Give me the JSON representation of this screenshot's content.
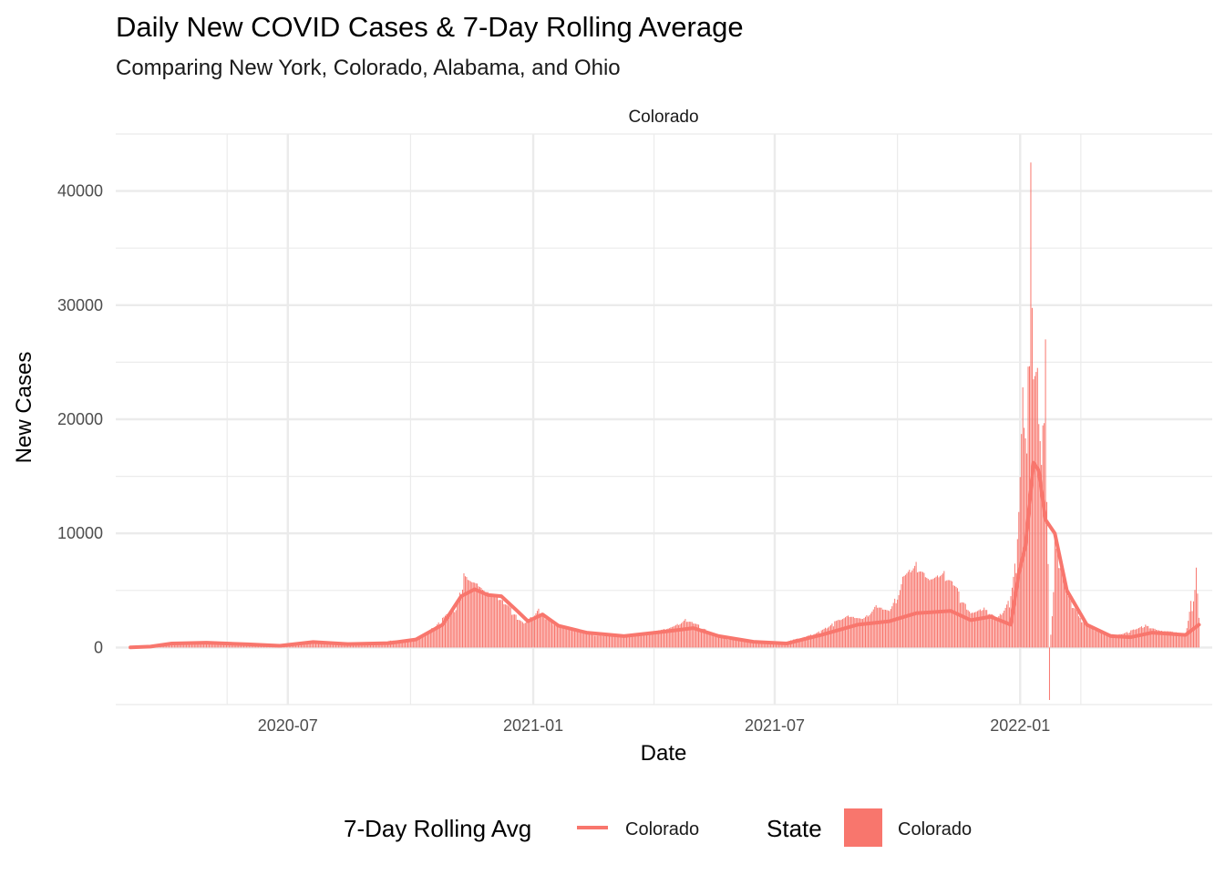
{
  "chart_data": {
    "type": "bar",
    "title": "Daily New COVID Cases & 7-Day Rolling Average",
    "subtitle": "Comparing New York, Colorado, Alabama, and Ohio",
    "facet": "Colorado",
    "xlabel": "Date",
    "ylabel": "New Cases",
    "x_ticks": [
      "2020-07",
      "2021-01",
      "2021-07",
      "2022-01"
    ],
    "y_ticks": [
      0,
      10000,
      20000,
      30000,
      40000
    ],
    "ylim": [
      -5000,
      45000
    ],
    "xlim": [
      "2020-02-23",
      "2022-05-25"
    ],
    "grid": true,
    "legend_position": "bottom",
    "colors": {
      "series": "#F8766D",
      "grid": "#EBEBEB"
    },
    "series": [
      {
        "name": "Colorado",
        "kind": "daily-bars",
        "values": [
          {
            "date": "2020-03-05",
            "y": 5
          },
          {
            "date": "2020-03-15",
            "y": 40
          },
          {
            "date": "2020-03-25",
            "y": 150
          },
          {
            "date": "2020-04-05",
            "y": 380
          },
          {
            "date": "2020-04-15",
            "y": 420
          },
          {
            "date": "2020-04-25",
            "y": 500
          },
          {
            "date": "2020-05-05",
            "y": 450
          },
          {
            "date": "2020-05-15",
            "y": 400
          },
          {
            "date": "2020-05-25",
            "y": 300
          },
          {
            "date": "2020-06-05",
            "y": 250
          },
          {
            "date": "2020-06-15",
            "y": 200
          },
          {
            "date": "2020-06-25",
            "y": 250
          },
          {
            "date": "2020-07-05",
            "y": 380
          },
          {
            "date": "2020-07-15",
            "y": 500
          },
          {
            "date": "2020-07-25",
            "y": 550
          },
          {
            "date": "2020-08-05",
            "y": 420
          },
          {
            "date": "2020-08-15",
            "y": 350
          },
          {
            "date": "2020-08-25",
            "y": 300
          },
          {
            "date": "2020-09-05",
            "y": 400
          },
          {
            "date": "2020-09-15",
            "y": 600
          },
          {
            "date": "2020-09-25",
            "y": 650
          },
          {
            "date": "2020-10-05",
            "y": 800
          },
          {
            "date": "2020-10-15",
            "y": 1500
          },
          {
            "date": "2020-10-25",
            "y": 2600
          },
          {
            "date": "2020-11-05",
            "y": 3800
          },
          {
            "date": "2020-11-10",
            "y": 6500
          },
          {
            "date": "2020-11-15",
            "y": 5800
          },
          {
            "date": "2020-11-20",
            "y": 5600
          },
          {
            "date": "2020-11-25",
            "y": 5000
          },
          {
            "date": "2020-12-05",
            "y": 4600
          },
          {
            "date": "2020-12-15",
            "y": 3500
          },
          {
            "date": "2020-12-25",
            "y": 2100
          },
          {
            "date": "2021-01-05",
            "y": 3400
          },
          {
            "date": "2021-01-15",
            "y": 2200
          },
          {
            "date": "2021-01-25",
            "y": 1800
          },
          {
            "date": "2021-02-05",
            "y": 1500
          },
          {
            "date": "2021-02-15",
            "y": 1100
          },
          {
            "date": "2021-02-25",
            "y": 1000
          },
          {
            "date": "2021-03-05",
            "y": 1000
          },
          {
            "date": "2021-03-15",
            "y": 1100
          },
          {
            "date": "2021-03-25",
            "y": 1200
          },
          {
            "date": "2021-04-05",
            "y": 1500
          },
          {
            "date": "2021-04-15",
            "y": 1800
          },
          {
            "date": "2021-04-25",
            "y": 2500
          },
          {
            "date": "2021-05-05",
            "y": 2000
          },
          {
            "date": "2021-05-15",
            "y": 1300
          },
          {
            "date": "2021-05-25",
            "y": 800
          },
          {
            "date": "2021-06-05",
            "y": 600
          },
          {
            "date": "2021-06-15",
            "y": 450
          },
          {
            "date": "2021-06-25",
            "y": 350
          },
          {
            "date": "2021-07-05",
            "y": 350
          },
          {
            "date": "2021-07-15",
            "y": 700
          },
          {
            "date": "2021-07-25",
            "y": 1000
          },
          {
            "date": "2021-08-05",
            "y": 1500
          },
          {
            "date": "2021-08-15",
            "y": 2300
          },
          {
            "date": "2021-08-25",
            "y": 2800
          },
          {
            "date": "2021-09-05",
            "y": 2500
          },
          {
            "date": "2021-09-15",
            "y": 3700
          },
          {
            "date": "2021-09-25",
            "y": 3200
          },
          {
            "date": "2021-10-05",
            "y": 6200
          },
          {
            "date": "2021-10-15",
            "y": 7500
          },
          {
            "date": "2021-10-25",
            "y": 5900
          },
          {
            "date": "2021-11-05",
            "y": 6700
          },
          {
            "date": "2021-11-15",
            "y": 5200
          },
          {
            "date": "2021-11-25",
            "y": 3000
          },
          {
            "date": "2021-12-05",
            "y": 3500
          },
          {
            "date": "2021-12-15",
            "y": 2600
          },
          {
            "date": "2021-12-25",
            "y": 4500
          },
          {
            "date": "2021-12-30",
            "y": 9500
          },
          {
            "date": "2022-01-03",
            "y": 22800
          },
          {
            "date": "2022-01-06",
            "y": 17000
          },
          {
            "date": "2022-01-09",
            "y": 42500
          },
          {
            "date": "2022-01-11",
            "y": 23500
          },
          {
            "date": "2022-01-14",
            "y": 24500
          },
          {
            "date": "2022-01-17",
            "y": 16000
          },
          {
            "date": "2022-01-20",
            "y": 27000
          },
          {
            "date": "2022-01-23",
            "y": -4600
          },
          {
            "date": "2022-01-27",
            "y": 9500
          },
          {
            "date": "2022-02-05",
            "y": 5500
          },
          {
            "date": "2022-02-15",
            "y": 2600
          },
          {
            "date": "2022-02-25",
            "y": 1600
          },
          {
            "date": "2022-03-05",
            "y": 1300
          },
          {
            "date": "2022-03-15",
            "y": 1100
          },
          {
            "date": "2022-03-25",
            "y": 1500
          },
          {
            "date": "2022-04-05",
            "y": 2000
          },
          {
            "date": "2022-04-15",
            "y": 1500
          },
          {
            "date": "2022-04-25",
            "y": 1400
          },
          {
            "date": "2022-05-05",
            "y": 1200
          },
          {
            "date": "2022-05-13",
            "y": 7000
          },
          {
            "date": "2022-05-15",
            "y": 2600
          }
        ]
      },
      {
        "name": "Colorado",
        "kind": "rolling-average-line",
        "values": [
          {
            "date": "2020-03-05",
            "y": 5
          },
          {
            "date": "2020-03-20",
            "y": 80
          },
          {
            "date": "2020-04-05",
            "y": 350
          },
          {
            "date": "2020-05-01",
            "y": 420
          },
          {
            "date": "2020-06-01",
            "y": 280
          },
          {
            "date": "2020-06-25",
            "y": 150
          },
          {
            "date": "2020-07-20",
            "y": 480
          },
          {
            "date": "2020-08-15",
            "y": 300
          },
          {
            "date": "2020-09-15",
            "y": 380
          },
          {
            "date": "2020-10-05",
            "y": 700
          },
          {
            "date": "2020-10-25",
            "y": 2000
          },
          {
            "date": "2020-11-08",
            "y": 4500
          },
          {
            "date": "2020-11-18",
            "y": 5100
          },
          {
            "date": "2020-11-28",
            "y": 4600
          },
          {
            "date": "2020-12-08",
            "y": 4500
          },
          {
            "date": "2020-12-20",
            "y": 3200
          },
          {
            "date": "2020-12-28",
            "y": 2300
          },
          {
            "date": "2021-01-08",
            "y": 2900
          },
          {
            "date": "2021-01-20",
            "y": 1900
          },
          {
            "date": "2021-02-10",
            "y": 1300
          },
          {
            "date": "2021-03-10",
            "y": 1000
          },
          {
            "date": "2021-04-10",
            "y": 1400
          },
          {
            "date": "2021-05-01",
            "y": 1700
          },
          {
            "date": "2021-05-20",
            "y": 1000
          },
          {
            "date": "2021-06-15",
            "y": 500
          },
          {
            "date": "2021-07-10",
            "y": 350
          },
          {
            "date": "2021-08-05",
            "y": 1100
          },
          {
            "date": "2021-09-01",
            "y": 2000
          },
          {
            "date": "2021-09-25",
            "y": 2300
          },
          {
            "date": "2021-10-15",
            "y": 3000
          },
          {
            "date": "2021-11-10",
            "y": 3200
          },
          {
            "date": "2021-11-25",
            "y": 2400
          },
          {
            "date": "2021-12-10",
            "y": 2700
          },
          {
            "date": "2021-12-25",
            "y": 2000
          },
          {
            "date": "2021-12-31",
            "y": 6500
          },
          {
            "date": "2022-01-05",
            "y": 8900
          },
          {
            "date": "2022-01-11",
            "y": 16200
          },
          {
            "date": "2022-01-15",
            "y": 15500
          },
          {
            "date": "2022-01-20",
            "y": 11200
          },
          {
            "date": "2022-01-27",
            "y": 10000
          },
          {
            "date": "2022-02-05",
            "y": 5000
          },
          {
            "date": "2022-02-20",
            "y": 2000
          },
          {
            "date": "2022-03-10",
            "y": 1000
          },
          {
            "date": "2022-03-25",
            "y": 900
          },
          {
            "date": "2022-04-10",
            "y": 1300
          },
          {
            "date": "2022-05-05",
            "y": 1100
          },
          {
            "date": "2022-05-15",
            "y": 2000
          }
        ]
      }
    ],
    "legend": {
      "line_title": "7-Day Rolling Avg",
      "line_label": "Colorado",
      "fill_title": "State",
      "fill_label": "Colorado"
    }
  }
}
